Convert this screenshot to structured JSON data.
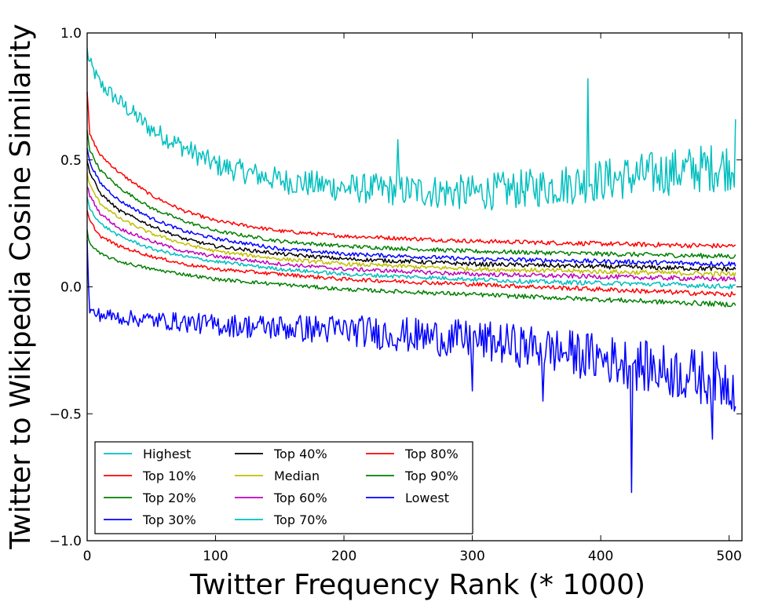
{
  "chart_data": {
    "type": "line",
    "xlabel": "Twitter Frequency Rank (* 1000)",
    "ylabel": "Twitter to Wikipedia Cosine Similarity",
    "xlim": [
      0,
      510
    ],
    "ylim": [
      -1.0,
      1.0
    ],
    "x_ticks": [
      0,
      100,
      200,
      300,
      400,
      500
    ],
    "y_ticks": [
      -1.0,
      -0.5,
      0.0,
      0.5,
      1.0
    ],
    "x_tick_labels": [
      "0",
      "100",
      "200",
      "300",
      "400",
      "500"
    ],
    "y_tick_labels": [
      "−1.0",
      "−0.5",
      "0.0",
      "0.5",
      "1.0"
    ],
    "grid": false,
    "legend": {
      "placement": "lower-left",
      "columns": 3
    },
    "series": [
      {
        "name": "Highest",
        "color": "#00bfbf",
        "x": [
          0,
          2,
          10,
          25,
          50,
          75,
          100,
          150,
          200,
          250,
          300,
          350,
          400,
          450,
          505
        ],
        "y": [
          0.93,
          0.88,
          0.8,
          0.73,
          0.62,
          0.55,
          0.48,
          0.42,
          0.39,
          0.38,
          0.37,
          0.39,
          0.42,
          0.45,
          0.48
        ],
        "noise": 0.03,
        "noise_growth": 0.07,
        "spikes": [
          [
            390,
            0.82
          ],
          [
            505,
            0.66
          ],
          [
            242,
            0.58
          ]
        ]
      },
      {
        "name": "Top 10%",
        "color": "#ff0000",
        "x": [
          0,
          2,
          10,
          25,
          50,
          75,
          100,
          150,
          200,
          250,
          300,
          350,
          400,
          450,
          505
        ],
        "y": [
          0.77,
          0.6,
          0.52,
          0.45,
          0.36,
          0.3,
          0.26,
          0.22,
          0.2,
          0.19,
          0.18,
          0.175,
          0.17,
          0.165,
          0.16
        ],
        "noise": 0.006,
        "noise_growth": 0.004
      },
      {
        "name": "Top 20%",
        "color": "#008000",
        "x": [
          0,
          2,
          10,
          25,
          50,
          75,
          100,
          150,
          200,
          250,
          300,
          350,
          400,
          450,
          505
        ],
        "y": [
          0.62,
          0.54,
          0.46,
          0.39,
          0.31,
          0.26,
          0.22,
          0.18,
          0.16,
          0.15,
          0.14,
          0.135,
          0.13,
          0.125,
          0.12
        ],
        "noise": 0.006,
        "noise_growth": 0.004
      },
      {
        "name": "Top 30%",
        "color": "#0000ff",
        "x": [
          0,
          2,
          10,
          25,
          50,
          75,
          100,
          150,
          200,
          250,
          300,
          350,
          400,
          450,
          505
        ],
        "y": [
          0.55,
          0.49,
          0.41,
          0.34,
          0.27,
          0.22,
          0.19,
          0.15,
          0.13,
          0.12,
          0.11,
          0.105,
          0.1,
          0.095,
          0.09
        ],
        "noise": 0.006,
        "noise_growth": 0.004
      },
      {
        "name": "Top 40%",
        "color": "#000000",
        "x": [
          0,
          2,
          10,
          25,
          50,
          75,
          100,
          150,
          200,
          250,
          300,
          350,
          400,
          450,
          505
        ],
        "y": [
          0.5,
          0.45,
          0.37,
          0.3,
          0.24,
          0.19,
          0.16,
          0.13,
          0.11,
          0.1,
          0.09,
          0.085,
          0.08,
          0.075,
          0.07
        ],
        "noise": 0.006,
        "noise_growth": 0.004
      },
      {
        "name": "Median",
        "color": "#bfbf00",
        "x": [
          0,
          2,
          10,
          25,
          50,
          75,
          100,
          150,
          200,
          250,
          300,
          350,
          400,
          450,
          505
        ],
        "y": [
          0.45,
          0.4,
          0.33,
          0.27,
          0.21,
          0.17,
          0.14,
          0.11,
          0.09,
          0.08,
          0.07,
          0.065,
          0.06,
          0.055,
          0.05
        ],
        "noise": 0.006,
        "noise_growth": 0.004
      },
      {
        "name": "Top 60%",
        "color": "#bf00bf",
        "x": [
          0,
          2,
          10,
          25,
          50,
          75,
          100,
          150,
          200,
          250,
          300,
          350,
          400,
          450,
          505
        ],
        "y": [
          0.4,
          0.36,
          0.29,
          0.23,
          0.18,
          0.14,
          0.12,
          0.09,
          0.07,
          0.06,
          0.05,
          0.045,
          0.04,
          0.035,
          0.03
        ],
        "noise": 0.006,
        "noise_growth": 0.004
      },
      {
        "name": "Top 70%",
        "color": "#00bfbf",
        "x": [
          0,
          2,
          10,
          25,
          50,
          75,
          100,
          150,
          200,
          250,
          300,
          350,
          400,
          450,
          505
        ],
        "y": [
          0.35,
          0.31,
          0.25,
          0.2,
          0.15,
          0.12,
          0.1,
          0.07,
          0.05,
          0.04,
          0.03,
          0.02,
          0.015,
          0.01,
          0.0
        ],
        "noise": 0.006,
        "noise_growth": 0.004
      },
      {
        "name": "Top 80%",
        "color": "#ff0000",
        "x": [
          0,
          2,
          10,
          25,
          50,
          75,
          100,
          150,
          200,
          250,
          300,
          350,
          400,
          450,
          505
        ],
        "y": [
          0.3,
          0.26,
          0.2,
          0.16,
          0.12,
          0.09,
          0.07,
          0.05,
          0.03,
          0.02,
          0.01,
          0.0,
          -0.01,
          -0.02,
          -0.03
        ],
        "noise": 0.006,
        "noise_growth": 0.004
      },
      {
        "name": "Top 90%",
        "color": "#008000",
        "x": [
          0,
          2,
          10,
          25,
          50,
          75,
          100,
          150,
          200,
          250,
          300,
          350,
          400,
          450,
          505
        ],
        "y": [
          0.22,
          0.17,
          0.13,
          0.1,
          0.07,
          0.05,
          0.03,
          0.01,
          -0.01,
          -0.02,
          -0.03,
          -0.04,
          -0.05,
          -0.06,
          -0.07
        ],
        "noise": 0.006,
        "noise_growth": 0.004
      },
      {
        "name": "Lowest",
        "color": "#0000ff",
        "x": [
          0,
          2,
          10,
          25,
          50,
          75,
          100,
          150,
          200,
          250,
          300,
          350,
          400,
          450,
          505
        ],
        "y": [
          0.17,
          -0.1,
          -0.11,
          -0.12,
          -0.13,
          -0.14,
          -0.15,
          -0.16,
          -0.17,
          -0.19,
          -0.21,
          -0.24,
          -0.28,
          -0.33,
          -0.38
        ],
        "noise": 0.025,
        "noise_growth": 0.09,
        "spikes": [
          [
            424,
            -0.81
          ],
          [
            487,
            -0.6
          ],
          [
            300,
            -0.41
          ],
          [
            355,
            -0.45
          ]
        ]
      }
    ]
  }
}
